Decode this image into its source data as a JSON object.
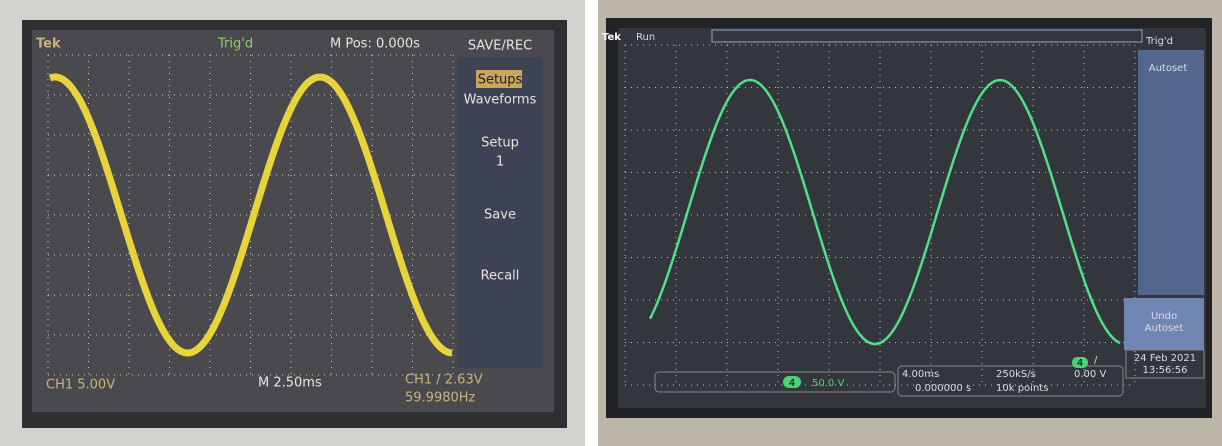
{
  "left_scope": {
    "brand": "Tek",
    "trigger": "Trig'd",
    "position": "M Pos: 0.000s",
    "menu_title": "SAVE/REC",
    "menu": [
      "Setups",
      "Waveforms",
      "Setup",
      "1",
      "Save",
      "Recall"
    ],
    "channel": "CH1 5.00V",
    "timebase": "M 2.50ms",
    "trigger_level": "CH1 / 2.63V",
    "frequency": "59.9980Hz"
  },
  "right_scope": {
    "brand": "Tek",
    "state": "Run",
    "trigger": "Trig'd",
    "menu": [
      "Autoset",
      "Undo",
      "Autoset"
    ],
    "channel_number": "4",
    "channel_scale": "50.0 V",
    "timebase": "4.00ms",
    "position": "0.000000 s",
    "sample_rate": "250kS/s",
    "record_length": "10k points",
    "trigger_channel": "4",
    "trigger_slope": "/",
    "trigger_level": "0.00 V",
    "date": "24 Feb 2021",
    "time": "13:56:56"
  }
}
